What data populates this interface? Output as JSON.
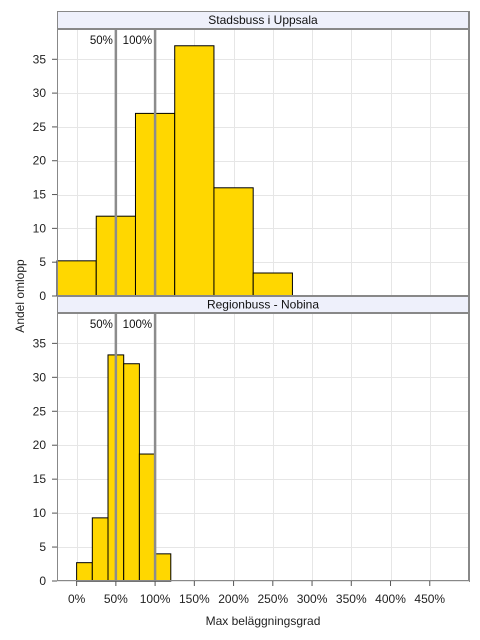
{
  "chart_data": {
    "type": "bar",
    "xlabel": "Max beläggningsgrad",
    "ylabel": "Andel omlopp",
    "xlim": [
      -25,
      500
    ],
    "x_ticks": [
      0,
      50,
      100,
      150,
      200,
      250,
      300,
      350,
      400,
      450
    ],
    "x_tick_labels": [
      "0%",
      "50%",
      "100%",
      "150%",
      "200%",
      "250%",
      "300%",
      "350%",
      "400%",
      "450%"
    ],
    "ylim": [
      0,
      38
    ],
    "y_ticks": [
      0,
      5,
      10,
      15,
      20,
      25,
      30,
      35
    ],
    "y_tick_labels": [
      "0",
      "5",
      "10",
      "15",
      "20",
      "25",
      "30",
      "35"
    ],
    "grid": true,
    "bar_color": "#FFD700",
    "reference_line_color": "#8c8c8c",
    "panels": [
      {
        "title": "Stadsbuss i Uppsala",
        "bin_width": 50,
        "bins": [
          {
            "from": -25,
            "to": 25,
            "value": 5.2
          },
          {
            "from": 25,
            "to": 75,
            "value": 11.8
          },
          {
            "from": 75,
            "to": 125,
            "value": 27.0
          },
          {
            "from": 125,
            "to": 175,
            "value": 37.0
          },
          {
            "from": 175,
            "to": 225,
            "value": 16.0
          },
          {
            "from": 225,
            "to": 275,
            "value": 3.4
          }
        ],
        "reference_lines": [
          {
            "x": 50,
            "label": "50%"
          },
          {
            "x": 100,
            "label": "100%"
          }
        ]
      },
      {
        "title": "Regionbuss - Nobina",
        "bin_width": 20,
        "bins": [
          {
            "from": 0,
            "to": 20,
            "value": 2.7
          },
          {
            "from": 20,
            "to": 40,
            "value": 9.3
          },
          {
            "from": 40,
            "to": 60,
            "value": 33.3
          },
          {
            "from": 60,
            "to": 80,
            "value": 32.0
          },
          {
            "from": 80,
            "to": 100,
            "value": 18.7
          },
          {
            "from": 100,
            "to": 120,
            "value": 4.0
          }
        ],
        "reference_lines": [
          {
            "x": 50,
            "label": "50%"
          },
          {
            "x": 100,
            "label": "100%"
          }
        ]
      }
    ]
  }
}
